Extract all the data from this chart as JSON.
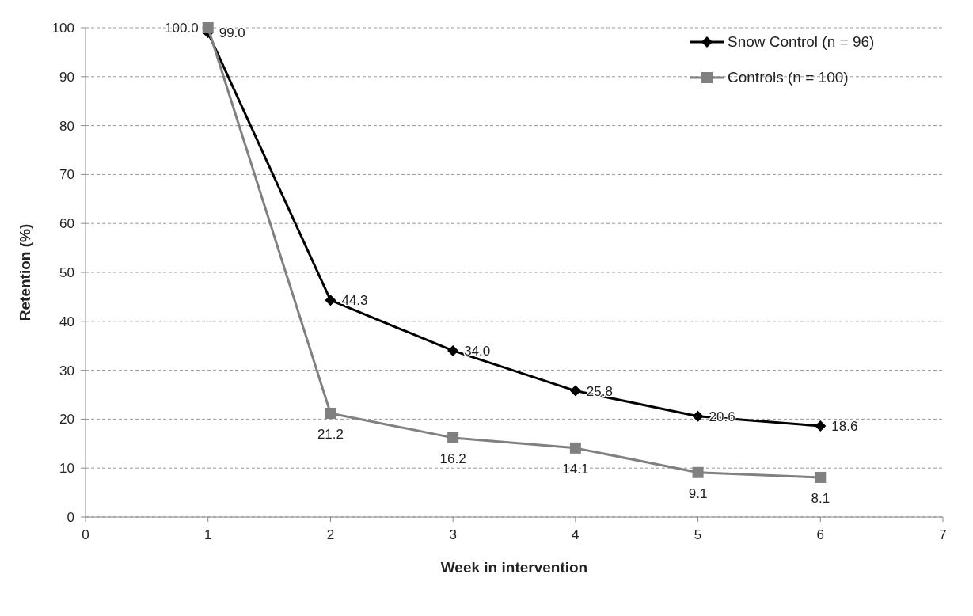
{
  "chart_data": {
    "type": "line",
    "xlabel": "Week in intervention",
    "ylabel": "Retention (%)",
    "x": [
      1,
      2,
      3,
      4,
      5,
      6
    ],
    "series": [
      {
        "name": "Snow Control (n = 96)",
        "color": "#000000",
        "marker": "diamond",
        "values": [
          99.0,
          44.3,
          34.0,
          25.8,
          20.6,
          18.6
        ],
        "value_labels": [
          "99.0",
          "44.3",
          "34.0",
          "25.8",
          "20.6",
          "18.6"
        ]
      },
      {
        "name": "Controls (n = 100)",
        "color": "#808080",
        "marker": "square",
        "values": [
          100.0,
          21.2,
          16.2,
          14.1,
          9.1,
          8.1
        ],
        "value_labels": [
          "100.0",
          "21.2",
          "16.2",
          "14.1",
          "9.1",
          "8.1"
        ]
      }
    ],
    "xlim": [
      0,
      7
    ],
    "xticks": [
      0,
      1,
      2,
      3,
      4,
      5,
      6,
      7
    ],
    "ylim": [
      0,
      100
    ],
    "yticks": [
      0,
      10,
      20,
      30,
      40,
      50,
      60,
      70,
      80,
      90,
      100
    ],
    "grid": "y",
    "legend": "top right"
  }
}
